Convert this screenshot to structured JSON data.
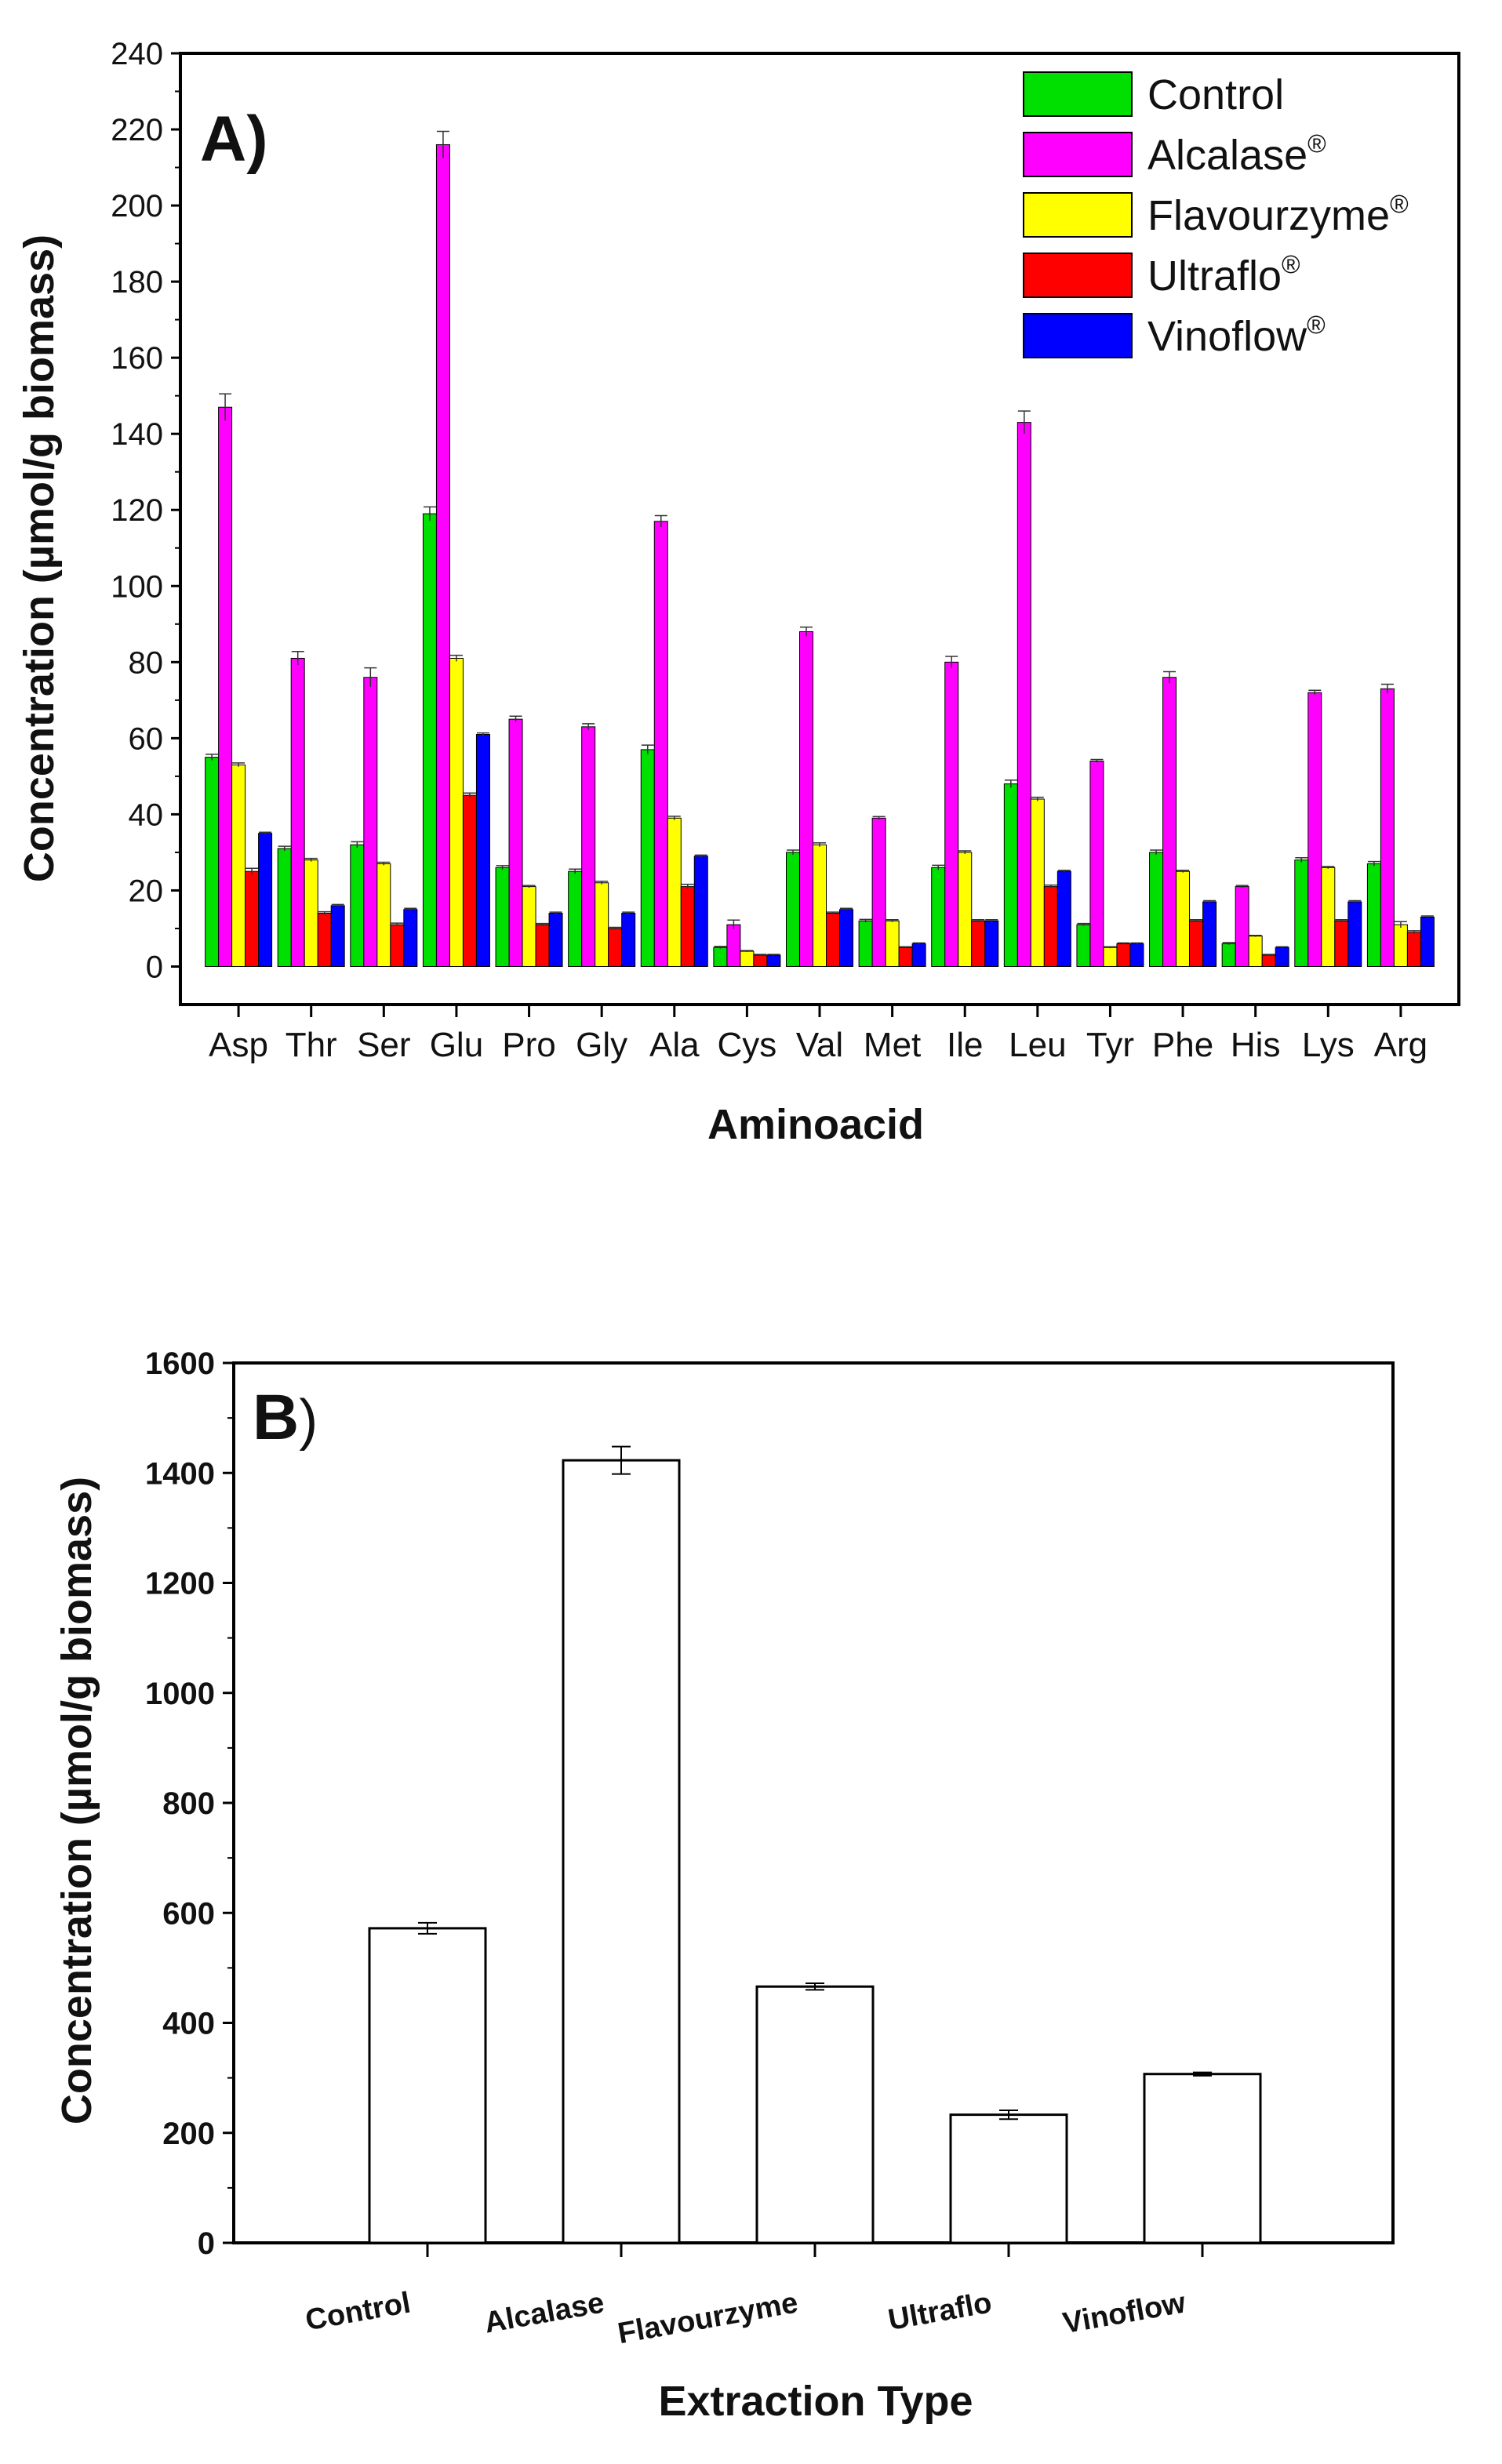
{
  "chart_data": [
    {
      "type": "bar",
      "panel_label": "A)",
      "xlabel": "Aminoacid",
      "ylabel": "Concentration (µmol/g biomass)",
      "ylim": [
        -10,
        240
      ],
      "yticks": [
        0,
        20,
        40,
        60,
        80,
        100,
        120,
        140,
        160,
        180,
        200,
        220,
        240
      ],
      "legend_position": "top-right",
      "categories": [
        "Asp",
        "Thr",
        "Ser",
        "Glu",
        "Pro",
        "Gly",
        "Ala",
        "Cys",
        "Val",
        "Met",
        "Ile",
        "Leu",
        "Tyr",
        "Phe",
        "His",
        "Lys",
        "Arg"
      ],
      "series": [
        {
          "name": "Control",
          "sup": "",
          "color": "#00e000",
          "values": [
            55,
            31,
            32,
            119,
            26,
            25,
            57,
            5,
            30,
            12,
            26,
            48,
            11,
            30,
            6,
            28,
            27
          ],
          "errors": [
            0.8,
            0.6,
            0.8,
            1.8,
            0.5,
            0.6,
            1.2,
            0.3,
            0.6,
            0.4,
            0.6,
            1.0,
            0.3,
            0.6,
            0.3,
            0.6,
            0.6
          ]
        },
        {
          "name": "Alcalase",
          "sup": "®",
          "color": "#ff00ff",
          "values": [
            147,
            81,
            76,
            216,
            65,
            63,
            117,
            11,
            88,
            39,
            80,
            143,
            54,
            76,
            21,
            72,
            73
          ],
          "errors": [
            3.5,
            1.8,
            2.5,
            3.5,
            0.8,
            0.8,
            1.5,
            1.2,
            1.2,
            0.4,
            1.5,
            3.0,
            0.4,
            1.5,
            0.3,
            0.6,
            1.2
          ]
        },
        {
          "name": "Flavourzyme",
          "sup": "®",
          "color": "#ffff00",
          "values": [
            53,
            28,
            27,
            81,
            21,
            22,
            39,
            4,
            32,
            12,
            30,
            44,
            5,
            25,
            8,
            26,
            11
          ],
          "errors": [
            0.5,
            0.4,
            0.4,
            0.8,
            0.3,
            0.4,
            0.5,
            0.2,
            0.5,
            0.3,
            0.4,
            0.5,
            0.2,
            0.3,
            0.2,
            0.3,
            0.8
          ]
        },
        {
          "name": "Ultraflo",
          "sup": "®",
          "color": "#ff0000",
          "values": [
            25,
            14,
            11,
            45,
            11,
            10,
            21,
            3,
            14,
            5,
            12,
            21,
            6,
            12,
            3,
            12,
            9
          ],
          "errors": [
            0.8,
            0.4,
            0.4,
            0.6,
            0.3,
            0.3,
            0.6,
            0.2,
            0.3,
            0.2,
            0.3,
            0.4,
            0.2,
            0.3,
            0.2,
            0.3,
            0.4
          ]
        },
        {
          "name": "Vinoflow",
          "sup": "®",
          "color": "#0000ff",
          "values": [
            35,
            16,
            15,
            61,
            14,
            14,
            29,
            3,
            15,
            6,
            12,
            25,
            6,
            17,
            5,
            17,
            13
          ],
          "errors": [
            0.3,
            0.3,
            0.3,
            0.4,
            0.3,
            0.3,
            0.3,
            0.2,
            0.3,
            0.2,
            0.3,
            0.3,
            0.2,
            0.3,
            0.2,
            0.3,
            0.3
          ]
        }
      ]
    },
    {
      "type": "bar",
      "panel_label_letter": "B",
      "panel_label_paren": ")",
      "xlabel": "Extraction Type",
      "ylabel": "Concentration (µmol/g biomass)",
      "ylim": [
        0,
        1600
      ],
      "yticks": [
        0,
        200,
        400,
        600,
        800,
        1000,
        1200,
        1400,
        1600
      ],
      "categories": [
        "Control",
        "Alcalase",
        "Flavourzyme",
        "Ultraflo",
        "Vinoflow"
      ],
      "values": [
        572,
        1423,
        466,
        233,
        307
      ],
      "errors": [
        10,
        25,
        6,
        8,
        3
      ],
      "bar_fill": "#ffffff",
      "bar_stroke": "#000000"
    }
  ]
}
